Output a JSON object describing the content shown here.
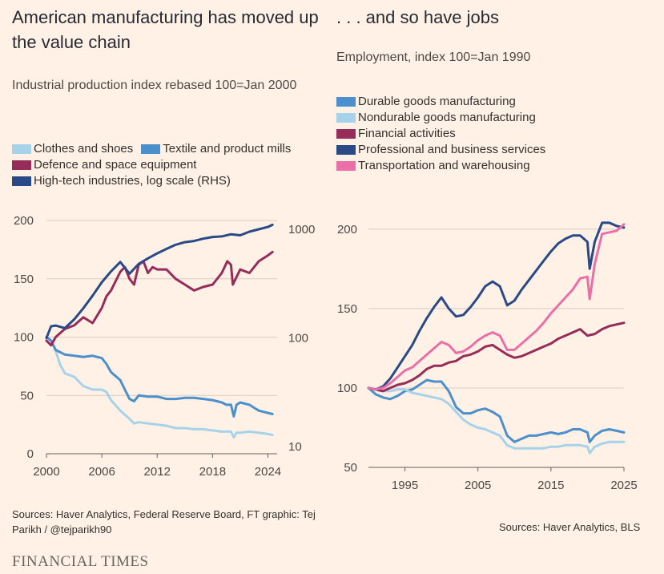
{
  "left": {
    "title": "American manufacturing has moved up the value chain",
    "subtitle": "Industrial production index rebased 100=Jan 2000",
    "legend": [
      {
        "label": "Clothes and shoes",
        "color": "#a6d3ea"
      },
      {
        "label": "Textile and product mills",
        "color": "#4b8fcc"
      },
      {
        "label": "Defence and space equipment",
        "color": "#962c5a"
      },
      {
        "label": "High-tech industries, log scale (RHS)",
        "color": "#294a86"
      }
    ],
    "source": "Sources: Haver Analytics, Federal Reserve Board, FT graphic: Tej Parikh / @tejparikh90"
  },
  "right": {
    "title": ". . . and so have jobs",
    "subtitle": "Employment, index 100=Jan 1990",
    "legend": [
      {
        "label": "Durable goods manufacturing",
        "color": "#4b8fcc"
      },
      {
        "label": "Nondurable goods manufacturing",
        "color": "#a6d3ea"
      },
      {
        "label": "Financial activities",
        "color": "#962c5a"
      },
      {
        "label": "Professional and business services",
        "color": "#294a86"
      },
      {
        "label": "Transportation and warehousing",
        "color": "#ea6fa7"
      }
    ],
    "source": "Sources: Haver Analytics, BLS"
  },
  "brand": "FINANCIAL TIMES",
  "chart_data": [
    {
      "type": "line",
      "xlim": [
        2000,
        2025
      ],
      "ylim": [
        0,
        200
      ],
      "x_ticks": [
        2000,
        2006,
        2012,
        2018,
        2024
      ],
      "y_ticks": [
        0,
        50,
        100,
        150,
        200
      ],
      "y2_scale": "log",
      "y2_ticks": [
        10,
        100,
        1000
      ],
      "grid": true,
      "series": [
        {
          "name": "Clothes and shoes",
          "color": "#a6d3ea",
          "axis": "left",
          "x": [
            2000,
            2000.5,
            2001,
            2001.5,
            2002,
            2003,
            2004,
            2005,
            2006,
            2006.5,
            2007,
            2008,
            2009,
            2009.5,
            2010,
            2011,
            2012,
            2013,
            2014,
            2015,
            2016,
            2017,
            2018,
            2019,
            2020,
            2020.3,
            2020.6,
            2021,
            2022,
            2023,
            2024,
            2024.5
          ],
          "y": [
            100,
            97,
            88,
            76,
            69,
            66,
            58,
            55,
            55,
            53,
            46,
            37,
            30,
            26,
            27,
            26,
            25,
            24,
            22,
            22,
            21,
            21,
            20,
            19,
            19,
            14,
            18,
            18,
            19,
            18,
            17,
            16
          ]
        },
        {
          "name": "Textile and product mills",
          "color": "#4b8fcc",
          "axis": "left",
          "x": [
            2000,
            2000.5,
            2001,
            2002,
            2003,
            2004,
            2005,
            2006,
            2006.5,
            2007,
            2008,
            2008.5,
            2009,
            2009.5,
            2010,
            2011,
            2012,
            2013,
            2014,
            2015,
            2016,
            2017,
            2018,
            2019,
            2019.5,
            2020,
            2020.3,
            2020.6,
            2021,
            2022,
            2023,
            2024,
            2024.5
          ],
          "y": [
            100,
            97,
            89,
            85,
            84,
            83,
            84,
            82,
            77,
            70,
            63,
            55,
            47,
            45,
            50,
            49,
            49,
            47,
            47,
            48,
            48,
            47,
            46,
            44,
            42,
            42,
            32,
            42,
            44,
            42,
            37,
            35,
            34
          ]
        },
        {
          "name": "Defence and space equipment",
          "color": "#962c5a",
          "axis": "left",
          "x": [
            2000,
            2000.5,
            2001,
            2002,
            2003,
            2004,
            2005,
            2006,
            2006.5,
            2007,
            2008,
            2008.5,
            2009,
            2009.5,
            2010,
            2010.5,
            2011,
            2011.5,
            2012,
            2013,
            2014,
            2015,
            2016,
            2017,
            2018,
            2019,
            2019.6,
            2020,
            2020.2,
            2021,
            2022,
            2023,
            2024,
            2024.5
          ],
          "y": [
            97,
            93,
            100,
            107,
            110,
            117,
            112,
            125,
            135,
            140,
            156,
            160,
            150,
            145,
            162,
            165,
            155,
            160,
            158,
            158,
            150,
            145,
            140,
            143,
            145,
            155,
            165,
            162,
            145,
            158,
            155,
            165,
            170,
            173
          ]
        },
        {
          "name": "High-tech industries, log scale (RHS)",
          "color": "#294a86",
          "axis": "right",
          "x": [
            2000,
            2000.5,
            2001,
            2002,
            2003,
            2004,
            2005,
            2006,
            2007,
            2008,
            2009,
            2010,
            2011,
            2012,
            2013,
            2014,
            2015,
            2016,
            2017,
            2018,
            2019,
            2020,
            2021,
            2022,
            2023,
            2024,
            2024.5
          ],
          "y": [
            100,
            128,
            130,
            123,
            148,
            188,
            245,
            325,
            410,
            500,
            390,
            480,
            540,
            600,
            660,
            720,
            760,
            780,
            820,
            850,
            860,
            900,
            880,
            950,
            1000,
            1050,
            1100
          ]
        }
      ]
    },
    {
      "type": "line",
      "xlim": [
        1990,
        2025
      ],
      "ylim": [
        50,
        210
      ],
      "x_ticks": [
        1995,
        2005,
        2015,
        2025
      ],
      "y_ticks": [
        50,
        100,
        150,
        200
      ],
      "grid": true,
      "series": [
        {
          "name": "Durable goods manufacturing",
          "color": "#4b8fcc",
          "x": [
            1990,
            1991,
            1992,
            1993,
            1994,
            1995,
            1996,
            1997,
            1998,
            1999,
            2000,
            2001,
            2002,
            2003,
            2004,
            2005,
            2006,
            2007,
            2008,
            2009,
            2010,
            2011,
            2012,
            2013,
            2014,
            2015,
            2016,
            2017,
            2018,
            2019,
            2020,
            2020.3,
            2021,
            2022,
            2023,
            2024,
            2025
          ],
          "y": [
            100,
            96,
            94,
            93,
            95,
            98,
            99,
            102,
            105,
            104,
            104,
            98,
            88,
            84,
            84,
            86,
            87,
            85,
            82,
            70,
            66,
            68,
            70,
            70,
            71,
            72,
            71,
            72,
            74,
            74,
            72,
            66,
            70,
            73,
            74,
            73,
            72
          ]
        },
        {
          "name": "Nondurable goods manufacturing",
          "color": "#a6d3ea",
          "x": [
            1990,
            1991,
            1992,
            1993,
            1994,
            1995,
            1996,
            1997,
            1998,
            1999,
            2000,
            2001,
            2002,
            2003,
            2004,
            2005,
            2006,
            2007,
            2008,
            2009,
            2010,
            2011,
            2012,
            2013,
            2014,
            2015,
            2016,
            2017,
            2018,
            2019,
            2020,
            2020.3,
            2021,
            2022,
            2023,
            2024,
            2025
          ],
          "y": [
            100,
            99,
            98,
            98,
            99,
            99,
            97,
            96,
            95,
            94,
            93,
            90,
            85,
            80,
            77,
            75,
            74,
            72,
            70,
            64,
            62,
            62,
            62,
            62,
            62,
            63,
            63,
            64,
            64,
            64,
            63,
            59,
            63,
            65,
            66,
            66,
            66
          ]
        },
        {
          "name": "Financial activities",
          "color": "#962c5a",
          "x": [
            1990,
            1991,
            1992,
            1993,
            1994,
            1995,
            1996,
            1997,
            1998,
            1999,
            2000,
            2001,
            2002,
            2003,
            2004,
            2005,
            2006,
            2007,
            2008,
            2009,
            2010,
            2011,
            2012,
            2013,
            2014,
            2015,
            2016,
            2017,
            2018,
            2019,
            2020,
            2021,
            2022,
            2023,
            2024,
            2025
          ],
          "y": [
            100,
            99,
            98,
            100,
            102,
            103,
            105,
            108,
            112,
            114,
            114,
            116,
            117,
            120,
            121,
            123,
            126,
            127,
            124,
            121,
            119,
            120,
            122,
            124,
            126,
            128,
            131,
            133,
            135,
            137,
            133,
            134,
            137,
            139,
            140,
            141
          ]
        },
        {
          "name": "Professional and business services",
          "color": "#294a86",
          "x": [
            1990,
            1991,
            1992,
            1993,
            1994,
            1995,
            1996,
            1997,
            1998,
            1999,
            2000,
            2001,
            2002,
            2003,
            2004,
            2005,
            2006,
            2007,
            2008,
            2009,
            2010,
            2011,
            2012,
            2013,
            2014,
            2015,
            2016,
            2017,
            2018,
            2019,
            2020,
            2020.3,
            2021,
            2022,
            2023,
            2024,
            2025
          ],
          "y": [
            100,
            99,
            101,
            106,
            113,
            120,
            127,
            136,
            144,
            151,
            157,
            150,
            145,
            146,
            151,
            157,
            164,
            167,
            164,
            152,
            155,
            162,
            168,
            174,
            180,
            186,
            191,
            194,
            196,
            196,
            192,
            175,
            192,
            204,
            204,
            202,
            201
          ]
        },
        {
          "name": "Transportation and warehousing",
          "color": "#ea6fa7",
          "x": [
            1990,
            1991,
            1992,
            1993,
            1994,
            1995,
            1996,
            1997,
            1998,
            1999,
            2000,
            2001,
            2002,
            2003,
            2004,
            2005,
            2006,
            2007,
            2008,
            2009,
            2010,
            2011,
            2012,
            2013,
            2014,
            2015,
            2016,
            2017,
            2018,
            2019,
            2020,
            2020.3,
            2021,
            2022,
            2023,
            2024,
            2025
          ],
          "y": [
            100,
            99,
            100,
            103,
            107,
            111,
            113,
            117,
            121,
            125,
            129,
            127,
            122,
            123,
            126,
            130,
            133,
            135,
            133,
            124,
            124,
            128,
            132,
            136,
            141,
            147,
            152,
            157,
            162,
            169,
            170,
            156,
            178,
            197,
            198,
            199,
            203
          ]
        }
      ]
    }
  ]
}
